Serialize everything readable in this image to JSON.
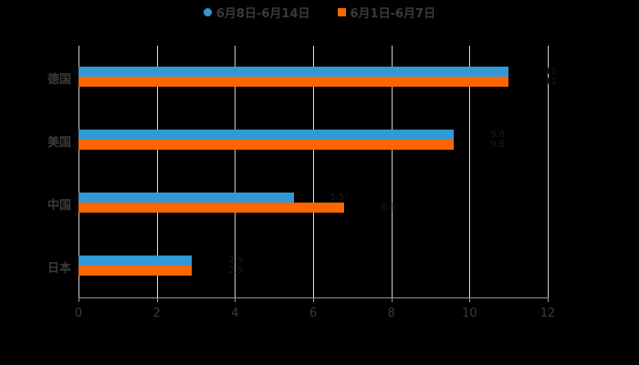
{
  "chart_data": {
    "type": "bar",
    "orientation": "horizontal",
    "title": "",
    "xlabel": "",
    "ylabel": "",
    "categories": [
      "德国",
      "美国",
      "中国",
      "日本"
    ],
    "series": [
      {
        "name": "6月8日-6月14日",
        "color": "#3399d4",
        "values": [
          11.0,
          9.6,
          5.5,
          2.9
        ]
      },
      {
        "name": "6月1日-6月7日",
        "color": "#ff6600",
        "values": [
          11.0,
          9.6,
          6.8,
          2.9
        ]
      }
    ],
    "xlim": [
      0,
      12
    ],
    "xticks": [
      "0",
      "2",
      "4",
      "6",
      "8",
      "10",
      "12"
    ],
    "grid": true,
    "legend_position": "top",
    "background": "#000000"
  },
  "legend": {
    "items": [
      {
        "label": "6月8日-6月14日",
        "color": "#3399d4",
        "shape": "circle"
      },
      {
        "label": "6月1日-6月7日",
        "color": "#ff6600",
        "shape": "square"
      }
    ]
  }
}
